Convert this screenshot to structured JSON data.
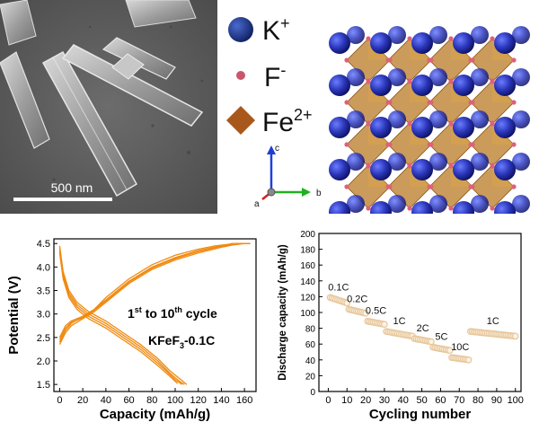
{
  "sem": {
    "scale_bar_label": "500 nm"
  },
  "crystal_legend": {
    "items": [
      {
        "ion": "K",
        "charge": "+",
        "color": "#1f3a8a",
        "shape": "sphere"
      },
      {
        "ion": "F",
        "charge": "-",
        "color": "#c8576c",
        "shape": "small-sphere"
      },
      {
        "ion": "Fe",
        "charge": "2+",
        "color": "#a9581b",
        "shape": "octahedron"
      }
    ]
  },
  "crystal_axes": {
    "a_label": "a",
    "b_label": "b",
    "c_label": "c",
    "colors": {
      "a": "#d62020",
      "b": "#21b021",
      "c": "#1e3fd6"
    }
  },
  "crystal_structure": {
    "k_color": "#1f2fa8",
    "f_color": "#e0607a",
    "octahedron_color": "#b97a25"
  },
  "chart_data": [
    {
      "type": "line",
      "ylabel": "Potential (V)",
      "xlabel": "Capacity (mAh/g)",
      "xlim": [
        -5,
        170
      ],
      "ylim": [
        1.35,
        4.6
      ],
      "x_ticks": [
        0,
        20,
        40,
        60,
        80,
        100,
        120,
        140,
        160
      ],
      "y_ticks": [
        1.5,
        2.0,
        2.5,
        3.0,
        3.5,
        4.0,
        4.5
      ],
      "annotation_line1": {
        "prefix": "1",
        "superscript": "st",
        "middle": " to 10",
        "superscript2": "th",
        "suffix": " cycle"
      },
      "annotation_line2": {
        "prefix": "KFeF",
        "subscript": "3",
        "suffix": "-0.1C"
      },
      "color": "#f08a10",
      "series": [
        {
          "kind": "charge",
          "x": [
            0,
            5,
            10,
            20,
            30,
            40,
            60,
            80,
            100,
            120,
            140,
            150,
            160,
            165
          ],
          "y": [
            2.35,
            2.6,
            2.75,
            2.9,
            3.05,
            3.25,
            3.65,
            3.95,
            4.15,
            4.3,
            4.42,
            4.47,
            4.5,
            4.5
          ]
        },
        {
          "kind": "charge",
          "x": [
            0,
            5,
            10,
            20,
            30,
            40,
            60,
            80,
            100,
            120,
            140,
            150,
            160,
            165
          ],
          "y": [
            2.5,
            2.75,
            2.85,
            2.95,
            3.1,
            3.3,
            3.7,
            4.0,
            4.2,
            4.35,
            4.45,
            4.5,
            4.5,
            4.5
          ]
        },
        {
          "kind": "charge",
          "x": [
            0,
            5,
            10,
            20,
            30,
            40,
            60,
            80,
            100,
            120,
            135,
            145,
            150
          ],
          "y": [
            2.4,
            2.65,
            2.8,
            2.95,
            3.1,
            3.35,
            3.75,
            4.05,
            4.25,
            4.38,
            4.45,
            4.48,
            4.5
          ]
        },
        {
          "kind": "charge",
          "x": [
            0,
            5,
            10,
            20,
            30,
            40,
            60,
            80,
            100,
            120,
            140,
            150
          ],
          "y": [
            2.45,
            2.7,
            2.82,
            2.92,
            3.08,
            3.28,
            3.68,
            3.98,
            4.18,
            4.33,
            4.44,
            4.48
          ]
        },
        {
          "kind": "discharge",
          "x": [
            0,
            3,
            8,
            15,
            25,
            40,
            55,
            70,
            85,
            95,
            105,
            110
          ],
          "y": [
            4.45,
            3.9,
            3.5,
            3.25,
            3.05,
            2.85,
            2.6,
            2.35,
            2.05,
            1.8,
            1.6,
            1.5
          ]
        },
        {
          "kind": "discharge",
          "x": [
            0,
            3,
            8,
            15,
            25,
            40,
            55,
            70,
            85,
            95,
            103,
            108
          ],
          "y": [
            4.4,
            3.85,
            3.45,
            3.2,
            3.0,
            2.8,
            2.55,
            2.3,
            2.0,
            1.75,
            1.58,
            1.5
          ]
        },
        {
          "kind": "discharge",
          "x": [
            0,
            3,
            8,
            15,
            25,
            40,
            55,
            70,
            85,
            95,
            100,
            106
          ],
          "y": [
            4.35,
            3.8,
            3.4,
            3.15,
            2.95,
            2.75,
            2.5,
            2.25,
            1.95,
            1.72,
            1.6,
            1.5
          ]
        },
        {
          "kind": "discharge",
          "x": [
            0,
            3,
            8,
            15,
            25,
            40,
            55,
            70,
            85,
            95,
            102
          ],
          "y": [
            4.3,
            3.75,
            3.35,
            3.1,
            2.9,
            2.7,
            2.45,
            2.2,
            1.9,
            1.68,
            1.52
          ]
        }
      ]
    },
    {
      "type": "scatter",
      "ylabel": "Discharge capacity (mAh/g)",
      "xlabel": "Cycling number",
      "xlim": [
        -5,
        103
      ],
      "ylim": [
        0,
        200
      ],
      "x_ticks": [
        0,
        10,
        20,
        30,
        40,
        50,
        60,
        70,
        80,
        90,
        100
      ],
      "y_ticks": [
        0,
        20,
        40,
        60,
        80,
        100,
        120,
        140,
        160,
        180,
        200
      ],
      "marker_color": "#e7c69a",
      "groups": [
        {
          "label": "0.1C",
          "x_range": [
            1,
            10
          ],
          "y_start": 119,
          "y_end": 112
        },
        {
          "label": "0.2C",
          "x_range": [
            11,
            20
          ],
          "y_start": 104,
          "y_end": 99
        },
        {
          "label": "0.5C",
          "x_range": [
            21,
            30
          ],
          "y_start": 89,
          "y_end": 85
        },
        {
          "label": "1C",
          "x_range": [
            31,
            45
          ],
          "y_start": 76,
          "y_end": 70
        },
        {
          "label": "2C",
          "x_range": [
            46,
            55
          ],
          "y_start": 67,
          "y_end": 63
        },
        {
          "label": "5C",
          "x_range": [
            56,
            65
          ],
          "y_start": 56,
          "y_end": 52
        },
        {
          "label": "10C",
          "x_range": [
            66,
            75
          ],
          "y_start": 43,
          "y_end": 40
        },
        {
          "label": "1C",
          "x_range": [
            76,
            100
          ],
          "y_start": 76,
          "y_end": 70
        }
      ]
    }
  ]
}
